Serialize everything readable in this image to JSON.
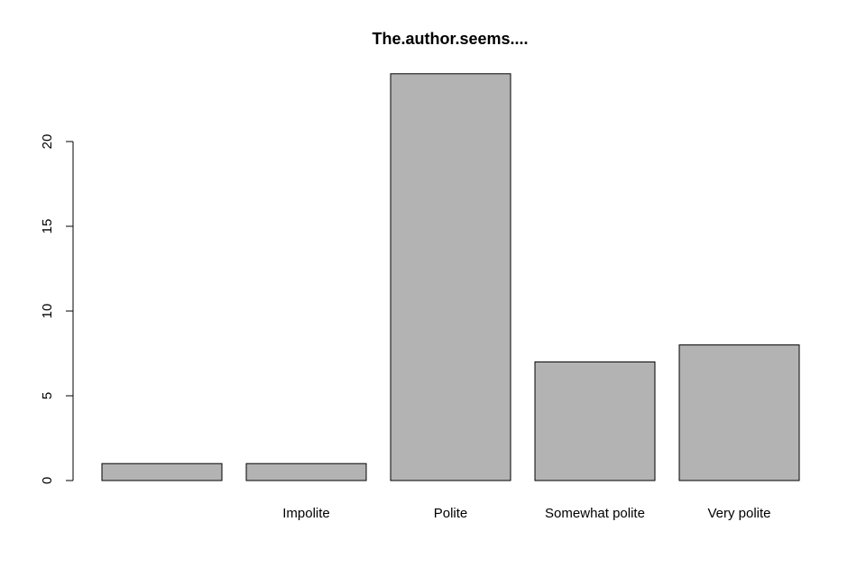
{
  "chart_data": {
    "type": "bar",
    "title": "The.author.seems....",
    "xlabel": "",
    "ylabel": "",
    "categories": [
      "",
      "Impolite",
      "Polite",
      "Somewhat polite",
      "Very polite"
    ],
    "values": [
      1,
      1,
      24,
      7,
      8
    ],
    "ylim": [
      0,
      24
    ],
    "yticks": [
      0,
      5,
      10,
      15,
      20
    ],
    "ytick_labels": [
      "0",
      "5",
      "10",
      "15",
      "20"
    ],
    "grid": false,
    "legend": "none",
    "bar_color": "#b3b3b3",
    "border_color": "#000000"
  }
}
